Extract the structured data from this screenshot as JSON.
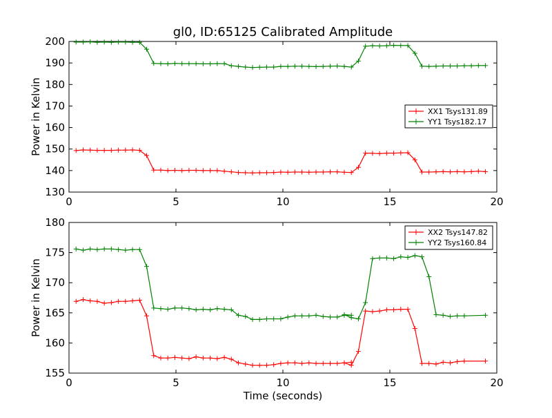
{
  "figure": {
    "title": "gl0, ID:65125 Calibrated Amplitude",
    "xlabel": "Time (seconds)"
  },
  "chart_data": [
    {
      "type": "line",
      "ylabel": "Power in Kelvin",
      "xlim": [
        0,
        20
      ],
      "ylim": [
        130,
        200
      ],
      "x_ticks": [
        "0",
        "5",
        "10",
        "15",
        "20"
      ],
      "y_ticks": [
        "130",
        "140",
        "150",
        "160",
        "170",
        "180",
        "190",
        "200"
      ],
      "grid": false,
      "legend_position": "center-right",
      "x": [
        0.33,
        0.66,
        0.99,
        1.32,
        1.65,
        1.98,
        2.31,
        2.64,
        2.97,
        3.3,
        3.63,
        3.96,
        4.29,
        4.62,
        4.95,
        5.28,
        5.61,
        5.94,
        6.27,
        6.6,
        6.93,
        7.26,
        7.59,
        7.92,
        8.25,
        8.58,
        8.91,
        9.24,
        9.57,
        9.9,
        10.23,
        10.56,
        10.89,
        11.22,
        11.55,
        11.88,
        12.21,
        12.54,
        12.87,
        13.2,
        13.53,
        13.86,
        14.19,
        14.52,
        14.85,
        15.18,
        15.51,
        15.84,
        16.17,
        16.5,
        16.83,
        17.16,
        17.49,
        17.82,
        18.15,
        18.48,
        18.81,
        19.14,
        19.47
      ],
      "series": [
        {
          "name": "XX1 Tsys131.89",
          "color": "#ff0000",
          "values": [
            149.3,
            149.6,
            149.5,
            149.4,
            149.4,
            149.4,
            149.5,
            149.5,
            149.6,
            149.4,
            147.0,
            140.2,
            140.2,
            140.0,
            140.1,
            140.0,
            140.1,
            140.1,
            140.0,
            140.0,
            140.0,
            139.7,
            139.4,
            139.1,
            139.0,
            138.9,
            139.0,
            139.0,
            139.1,
            139.3,
            139.2,
            139.3,
            139.3,
            139.2,
            139.3,
            139.3,
            139.4,
            139.4,
            139.2,
            139.1,
            141.5,
            148.1,
            148.0,
            147.9,
            148.1,
            148.1,
            148.2,
            148.3,
            145.0,
            139.3,
            139.3,
            139.4,
            139.5,
            139.4,
            139.5,
            139.4,
            139.5,
            139.7,
            139.5
          ]
        },
        {
          "name": "YY1 Tsys182.17",
          "color": "#008000",
          "values": [
            199.7,
            199.7,
            199.8,
            199.6,
            199.7,
            199.6,
            199.7,
            199.7,
            199.6,
            199.6,
            196.4,
            189.8,
            189.7,
            189.6,
            189.8,
            189.7,
            189.7,
            189.7,
            189.6,
            189.6,
            189.7,
            189.7,
            188.7,
            188.4,
            188.1,
            187.9,
            188.0,
            188.1,
            188.1,
            188.4,
            188.4,
            188.5,
            188.5,
            188.4,
            188.3,
            188.4,
            188.5,
            188.6,
            188.4,
            188.1,
            190.9,
            197.8,
            198.0,
            197.9,
            198.0,
            198.2,
            198.1,
            198.1,
            194.5,
            188.5,
            188.4,
            188.5,
            188.6,
            188.6,
            188.6,
            188.7,
            188.7,
            188.8,
            188.8
          ]
        }
      ]
    },
    {
      "type": "line",
      "ylabel": "Power in Kelvin",
      "xlim": [
        0,
        20
      ],
      "ylim": [
        155,
        180
      ],
      "x_ticks": [
        "0",
        "5",
        "10",
        "15",
        "20"
      ],
      "y_ticks": [
        "155",
        "160",
        "165",
        "170",
        "175",
        "180"
      ],
      "grid": false,
      "legend_position": "top-right",
      "x": [
        0.33,
        0.66,
        0.99,
        1.32,
        1.65,
        1.98,
        2.31,
        2.64,
        2.97,
        3.3,
        3.63,
        3.96,
        4.29,
        4.62,
        4.95,
        5.28,
        5.61,
        5.94,
        6.27,
        6.6,
        6.93,
        7.26,
        7.59,
        7.92,
        8.25,
        8.58,
        8.91,
        9.24,
        9.57,
        9.9,
        10.23,
        10.56,
        10.89,
        11.22,
        11.55,
        11.88,
        12.21,
        12.54,
        12.87,
        13.2,
        13.53,
        13.86,
        14.19,
        14.52,
        14.85,
        15.18,
        15.51,
        15.84,
        16.17,
        16.5,
        16.83,
        17.16,
        17.49,
        17.82,
        18.15,
        18.48,
        18.81,
        19.14,
        19.47
      ],
      "series": [
        {
          "name": "XX2 Tsys147.82",
          "color": "#ff0000",
          "values": [
            166.9,
            167.2,
            167.0,
            166.9,
            166.6,
            166.7,
            166.9,
            166.9,
            167.0,
            167.1,
            164.5,
            157.9,
            157.5,
            157.5,
            157.6,
            157.5,
            157.4,
            157.7,
            157.5,
            157.5,
            157.4,
            157.6,
            157.3,
            156.7,
            156.5,
            156.3,
            156.3,
            156.3,
            156.4,
            156.6,
            156.7,
            156.7,
            156.6,
            156.7,
            156.6,
            156.6,
            156.6,
            156.6,
            156.7,
            156.8,
            156.7,
            156.3,
            158.6,
            165.3,
            165.2,
            165.3,
            165.5,
            165.5,
            165.6,
            165.6,
            162.4,
            156.6,
            156.6,
            156.5,
            156.8,
            156.7,
            156.9,
            157.0,
            157.0
          ],
          "x": [
            0.33,
            0.66,
            0.99,
            1.32,
            1.65,
            1.98,
            2.31,
            2.64,
            2.97,
            3.3,
            3.63,
            3.96,
            4.29,
            4.62,
            4.95,
            5.28,
            5.61,
            5.94,
            6.27,
            6.6,
            6.93,
            7.26,
            7.59,
            7.92,
            8.25,
            8.58,
            8.91,
            9.24,
            9.57,
            9.9,
            10.23,
            10.56,
            10.89,
            11.22,
            11.55,
            11.88,
            12.21,
            12.54,
            12.87,
            13.2,
            12.87,
            13.2,
            13.53,
            13.86,
            14.19,
            14.52,
            14.85,
            15.18,
            15.51,
            15.84,
            16.17,
            16.5,
            16.83,
            17.16,
            17.49,
            17.82,
            18.15,
            18.48,
            19.47
          ]
        },
        {
          "name": "YY2 Tsys160.84",
          "color": "#008000",
          "values": [
            175.6,
            175.4,
            175.6,
            175.5,
            175.6,
            175.6,
            175.5,
            175.4,
            175.5,
            175.5,
            172.7,
            165.8,
            165.7,
            165.6,
            165.8,
            165.8,
            165.7,
            165.5,
            165.6,
            165.5,
            165.7,
            165.6,
            165.5,
            164.6,
            164.4,
            163.9,
            163.9,
            164.0,
            164.0,
            164.0,
            164.3,
            164.5,
            164.5,
            164.5,
            164.6,
            164.4,
            164.3,
            164.3,
            164.6,
            164.6,
            164.7,
            164.2,
            164.0,
            166.7,
            174.0,
            174.1,
            174.1,
            174.0,
            174.3,
            174.2,
            174.5,
            174.3,
            171.0,
            164.7,
            164.6,
            164.4,
            164.5,
            164.5,
            164.6
          ],
          "x": [
            0.33,
            0.66,
            0.99,
            1.32,
            1.65,
            1.98,
            2.31,
            2.64,
            2.97,
            3.3,
            3.63,
            3.96,
            4.29,
            4.62,
            4.95,
            5.28,
            5.61,
            5.94,
            6.27,
            6.6,
            6.93,
            7.26,
            7.59,
            7.92,
            8.25,
            8.58,
            8.91,
            9.24,
            9.57,
            9.9,
            10.23,
            10.56,
            10.89,
            11.22,
            11.55,
            11.88,
            12.21,
            12.54,
            12.87,
            13.2,
            12.87,
            13.2,
            13.53,
            13.86,
            14.19,
            14.52,
            14.85,
            15.18,
            15.51,
            15.84,
            16.17,
            16.5,
            16.83,
            17.16,
            17.49,
            17.82,
            18.15,
            18.48,
            19.47
          ]
        }
      ]
    }
  ]
}
